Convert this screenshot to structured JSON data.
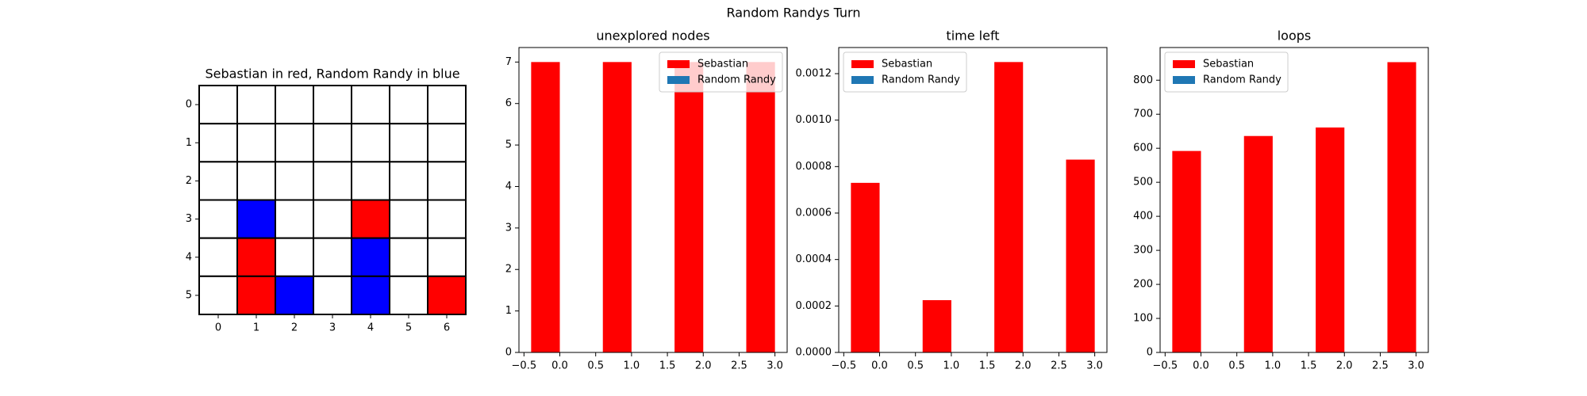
{
  "title": "Random Randys Turn",
  "chart_data": [
    {
      "type": "board",
      "title": "Sebastian in red, Random Randy in blue",
      "cells": [
        [
          0,
          0,
          0,
          0,
          0,
          0,
          0
        ],
        [
          0,
          0,
          0,
          0,
          0,
          0,
          0
        ],
        [
          0,
          0,
          0,
          0,
          0,
          0,
          0
        ],
        [
          0,
          2,
          0,
          0,
          1,
          0,
          0
        ],
        [
          0,
          1,
          0,
          0,
          2,
          0,
          0
        ],
        [
          0,
          1,
          2,
          0,
          2,
          0,
          1
        ]
      ],
      "colors": [
        "#ffffff",
        "#ff0000",
        "#0000ff"
      ],
      "xlim": [
        -0.5,
        6.5
      ],
      "ylim": [
        5.5,
        -0.5
      ],
      "xticks": [
        0,
        1,
        2,
        3,
        4,
        5,
        6
      ],
      "yticks": [
        0,
        1,
        2,
        3,
        4,
        5
      ]
    },
    {
      "type": "bar",
      "title": "unexplored nodes",
      "x": [
        -0.2,
        0.8,
        1.8,
        2.8
      ],
      "bar_width": 0.4,
      "series": [
        {
          "name": "Sebastian",
          "color": "#ff0000",
          "values": [
            7,
            7,
            7,
            7
          ]
        },
        {
          "name": "Random Randy",
          "color": "#1f77b4",
          "values": [
            0,
            0,
            0,
            0
          ]
        }
      ],
      "xlim": [
        -0.57,
        3.17
      ],
      "ylim": [
        0,
        7.35
      ],
      "xticks": [
        {
          "value": -0.5,
          "label": "−0.5"
        },
        {
          "value": 0,
          "label": "0.0"
        },
        0.5,
        {
          "value": 1,
          "label": "1.0"
        },
        1.5,
        {
          "value": 2,
          "label": "2.0"
        },
        2.5,
        {
          "value": 3,
          "label": "3.0"
        }
      ],
      "yticks": [
        0,
        1,
        2,
        3,
        4,
        5,
        6,
        7
      ],
      "legend": "upper right"
    },
    {
      "type": "bar",
      "title": "time left",
      "x": [
        -0.2,
        0.8,
        1.8,
        2.8
      ],
      "bar_width": 0.4,
      "series": [
        {
          "name": "Sebastian",
          "color": "#ff0000",
          "values": [
            0.00073,
            0.000225,
            0.00125,
            0.00083
          ]
        },
        {
          "name": "Random Randy",
          "color": "#1f77b4",
          "values": [
            0,
            0,
            0,
            0
          ]
        }
      ],
      "xlim": [
        -0.57,
        3.17
      ],
      "ylim": [
        0,
        0.0013125
      ],
      "xticks": [
        {
          "value": -0.5,
          "label": "−0.5"
        },
        {
          "value": 0,
          "label": "0.0"
        },
        0.5,
        {
          "value": 1,
          "label": "1.0"
        },
        1.5,
        {
          "value": 2,
          "label": "2.0"
        },
        2.5,
        {
          "value": 3,
          "label": "3.0"
        }
      ],
      "yticks": [
        {
          "value": 0,
          "label": "0.0000"
        },
        {
          "value": 0.0002,
          "label": "0.0002"
        },
        {
          "value": 0.0004,
          "label": "0.0004"
        },
        {
          "value": 0.0006,
          "label": "0.0006"
        },
        {
          "value": 0.0008,
          "label": "0.0008"
        },
        {
          "value": 0.001,
          "label": "0.0010"
        },
        {
          "value": 0.0012,
          "label": "0.0012"
        }
      ],
      "legend": "upper left"
    },
    {
      "type": "bar",
      "title": "loops",
      "x": [
        -0.2,
        0.8,
        1.8,
        2.8
      ],
      "bar_width": 0.4,
      "series": [
        {
          "name": "Sebastian",
          "color": "#ff0000",
          "values": [
            592,
            636,
            661,
            853
          ]
        },
        {
          "name": "Random Randy",
          "color": "#1f77b4",
          "values": [
            0,
            0,
            0,
            0
          ]
        }
      ],
      "xlim": [
        -0.57,
        3.17
      ],
      "ylim": [
        0,
        896
      ],
      "xticks": [
        {
          "value": -0.5,
          "label": "−0.5"
        },
        {
          "value": 0,
          "label": "0.0"
        },
        0.5,
        {
          "value": 1,
          "label": "1.0"
        },
        1.5,
        {
          "value": 2,
          "label": "2.0"
        },
        2.5,
        {
          "value": 3,
          "label": "3.0"
        }
      ],
      "yticks": [
        0,
        100,
        200,
        300,
        400,
        500,
        600,
        700,
        800
      ],
      "legend": "upper left"
    }
  ]
}
